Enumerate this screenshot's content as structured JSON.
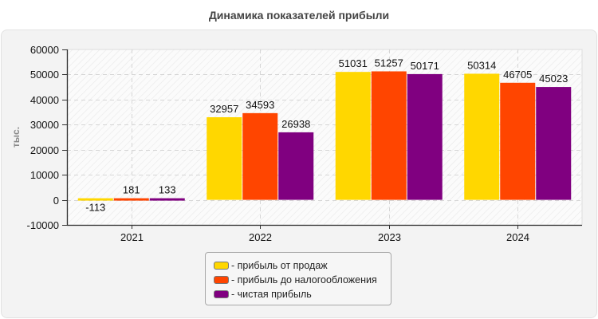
{
  "title": "Динамика показателей прибыли",
  "chart_data": {
    "type": "bar",
    "title": "Динамика показателей прибыли",
    "xlabel": "",
    "ylabel": "тыс.",
    "ylim": [
      -10000,
      60000
    ],
    "yticks": [
      -10000,
      0,
      10000,
      20000,
      30000,
      40000,
      50000,
      60000
    ],
    "grid": true,
    "legend_position": "bottom",
    "categories": [
      "2021",
      "2022",
      "2023",
      "2024"
    ],
    "series": [
      {
        "name": "- прибыль от продаж",
        "color": "#FFD700",
        "values": [
          -113,
          32957,
          51031,
          50314
        ]
      },
      {
        "name": "- прибыль до налогообложения",
        "color": "#FF4500",
        "values": [
          181,
          34593,
          51257,
          46705
        ]
      },
      {
        "name": "- чистая прибыль",
        "color": "#800080",
        "values": [
          133,
          26938,
          50171,
          45023
        ]
      }
    ]
  }
}
